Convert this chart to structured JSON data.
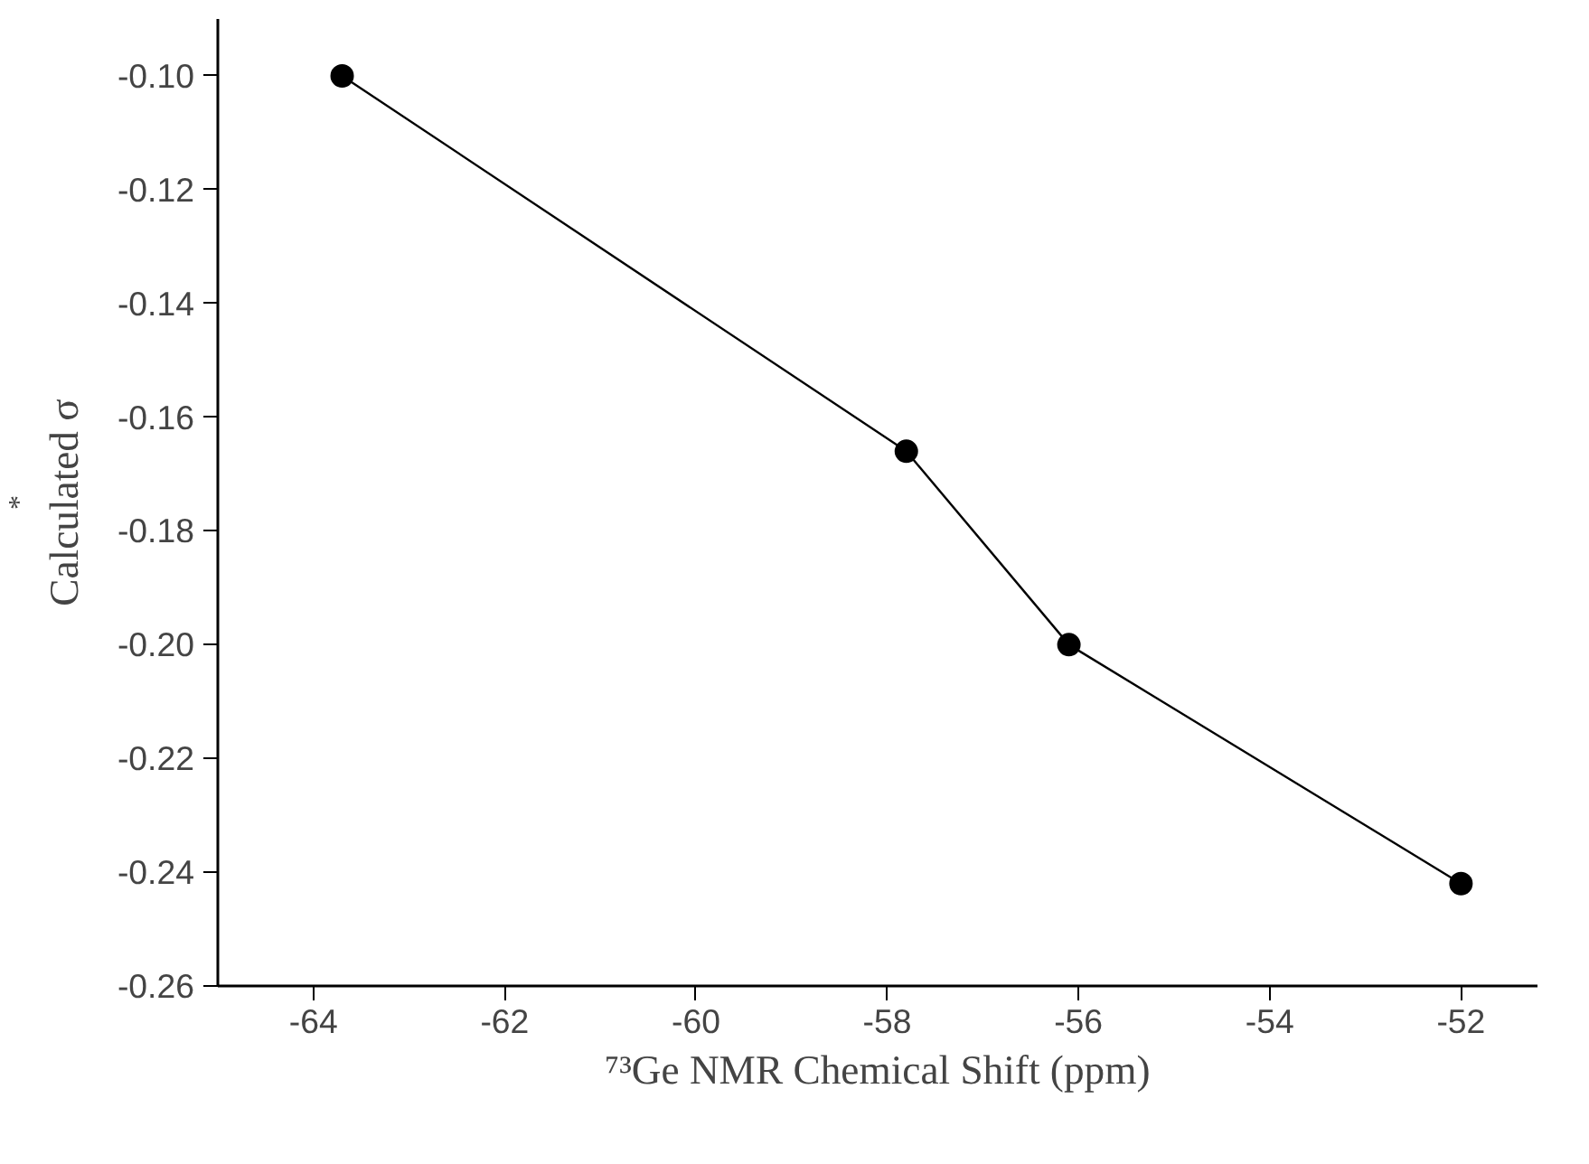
{
  "chart_data": {
    "type": "line",
    "xlabel": "⁷³Ge NMR Chemical Shift (ppm)",
    "ylabel": "Calculated σ$^{*}$",
    "x": [
      -63.7,
      -57.8,
      -56.1,
      -52.0
    ],
    "series": [
      {
        "color": "#000000",
        "values": [
          -0.1,
          -0.166,
          -0.2,
          -0.242
        ]
      }
    ],
    "xlim": [
      -65,
      -51.2
    ],
    "xticks": [
      -64,
      -62,
      -60,
      -58,
      -56,
      -54,
      -52
    ],
    "ylim": [
      -0.26,
      -0.09
    ],
    "yticks": [
      {
        "value": -0.26,
        "label": "-0.26"
      },
      {
        "value": -0.24,
        "label": "-0.24"
      },
      {
        "value": -0.22,
        "label": "-0.22"
      },
      {
        "value": -0.2,
        "label": "-0.20"
      },
      {
        "value": -0.18,
        "label": "-0.18"
      },
      {
        "value": -0.16,
        "label": "-0.16"
      },
      {
        "value": -0.14,
        "label": "-0.14"
      },
      {
        "value": -0.12,
        "label": "-0.12"
      },
      {
        "value": -0.1,
        "label": "-0.10"
      }
    ],
    "marker": "circle",
    "line_style": "solid",
    "grid": false
  }
}
